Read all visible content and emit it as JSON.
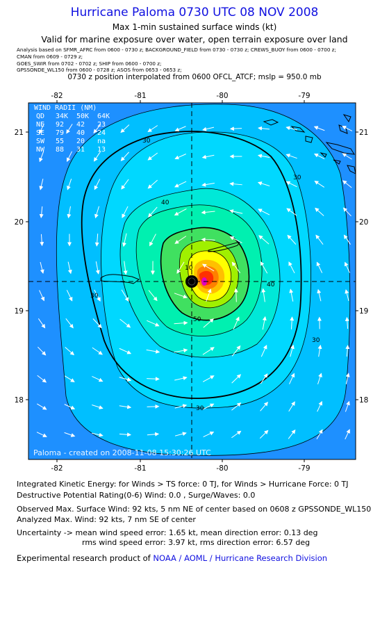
{
  "header": {
    "title": "Hurricane Paloma 0730 UTC 08 NOV 2008",
    "subtitle": "Max 1-min sustained surface winds (kt)",
    "valid_line": "Valid for marine exposure over water, open terrain exposure over land",
    "analysis_lines": [
      "Analysis based on  SFMR_AFRC from 0600 - 0730 z;  BACKGROUND_FIELD from 0730 - 0730 z;  CREWS_BUOY from 0600 - 0700 z;",
      "CMAN from 0609 - 0729 z;",
      "GOES_SWIR from 0702 - 0702 z;  SHIP from 0600 - 0700 z;",
      "GPSSONDE_WL150 from 0600 - 0728 z;  ASOS from 0653 - 0653 z;"
    ],
    "position_line": "0730 z position interpolated from 0600 OFCL_ATCF; mslp = 950.0 mb"
  },
  "map": {
    "lon_ticks": [
      "-82",
      "-81",
      "-80",
      "-79"
    ],
    "lat_ticks": [
      "21",
      "20",
      "19",
      "18"
    ],
    "contour_labels": [
      "30",
      "30",
      "30",
      "30",
      "30",
      "40",
      "40",
      "50",
      "10"
    ],
    "wind_radii": {
      "title": "WIND RADII (NM)",
      "header": [
        "QD",
        "34K",
        "50K",
        "64K"
      ],
      "rows": [
        [
          "NE",
          "92",
          "42",
          "23"
        ],
        [
          "SE",
          "79",
          "40",
          "24"
        ],
        [
          "SW",
          "55",
          "20",
          "na"
        ],
        [
          "NW",
          "88",
          "31",
          "13"
        ]
      ]
    },
    "footer_credit": "Paloma - created on 2008-11-08 15:30:26 UTC",
    "colors": {
      "ocean": "#1e90ff",
      "c20": "#00bfff",
      "c30": "#00d8ff",
      "c40": "#00e8d8",
      "c50": "#00f0b0",
      "c60": "#40e060",
      "c70": "#a0f000",
      "c80": "#ffff00",
      "c85": "#ffc000",
      "c90": "#ff8000",
      "c92": "#ff3000",
      "c95": "#e000c0"
    }
  },
  "info": {
    "ike_line": "Integrated Kinetic Energy:  for Winds > TS force: 0 TJ,  for Winds > Hurricane Force: 0 TJ",
    "dpr_line": "Destructive Potential Rating(0-6)   Wind: 0.0 , Surge/Waves: 0.0",
    "obs_line": "Observed Max. Surface Wind: 92 kts, 5 nm NE of center based on 0608 z GPSSONDE_WL150",
    "analyzed_line": "Analyzed Max. Wind: 92 kts, 7 nm SE of center",
    "uncert_line1": "Uncertainty -> mean wind speed error: 1.65 kt,   mean direction error: 0.13 deg",
    "uncert_line2": "rms wind speed error: 3.97 kt,   rms direction error: 6.57 deg",
    "credit_prefix": "Experimental research product of ",
    "credit_org": "NOAA / AOML / Hurricane Research Division"
  }
}
